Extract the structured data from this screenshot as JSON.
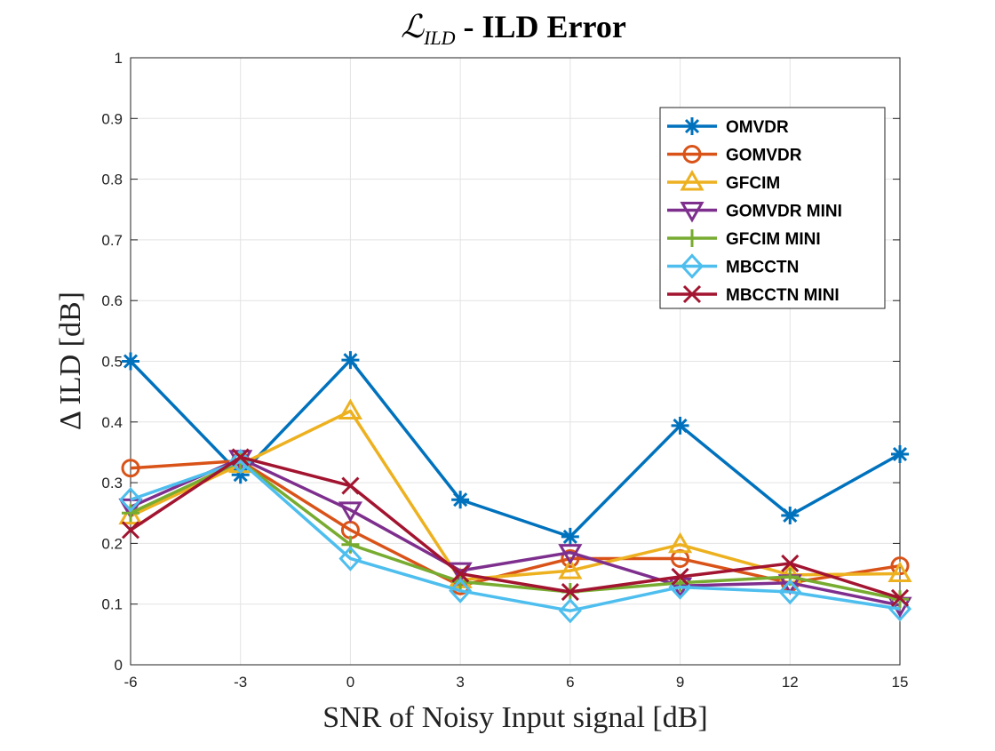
{
  "chart_data": {
    "type": "line",
    "title_script": "ℒ",
    "title_sub": "ILD",
    "title_rest": " - ILD Error",
    "xlabel": "SNR of Noisy Input signal [dB]",
    "ylabel": "Δ ILD [dB]",
    "x": [
      -6,
      -3,
      0,
      3,
      6,
      9,
      12,
      15
    ],
    "xlim": [
      -6,
      15
    ],
    "ylim": [
      0,
      1
    ],
    "xticks": [
      "-6",
      "-3",
      "0",
      "3",
      "6",
      "9",
      "12",
      "15"
    ],
    "yticks": [
      "0",
      "0.1",
      "0.2",
      "0.3",
      "0.4",
      "0.5",
      "0.6",
      "0.7",
      "0.8",
      "0.9",
      "1"
    ],
    "grid": true,
    "legend_position": "top-right",
    "series": [
      {
        "name": "OMVDR",
        "color": "#0072BD",
        "marker": "asterisk",
        "values": [
          0.5,
          0.313,
          0.502,
          0.272,
          0.211,
          0.394,
          0.246,
          0.347
        ]
      },
      {
        "name": "GOMVDR",
        "color": "#D95319",
        "marker": "circle",
        "values": [
          0.324,
          0.336,
          0.222,
          0.13,
          0.175,
          0.175,
          0.135,
          0.163
        ]
      },
      {
        "name": "GFCIM",
        "color": "#EDB120",
        "marker": "triangle-up",
        "values": [
          0.245,
          0.33,
          0.418,
          0.14,
          0.155,
          0.198,
          0.148,
          0.15
        ]
      },
      {
        "name": "GOMVDR MINI",
        "color": "#7E2F8E",
        "marker": "triangle-down",
        "values": [
          0.26,
          0.34,
          0.255,
          0.155,
          0.185,
          0.13,
          0.135,
          0.098
        ]
      },
      {
        "name": "GFCIM MINI",
        "color": "#77AC30",
        "marker": "plus",
        "values": [
          0.25,
          0.335,
          0.198,
          0.137,
          0.12,
          0.135,
          0.145,
          0.108
        ]
      },
      {
        "name": "MBCCTN",
        "color": "#4DBEEE",
        "marker": "diamond",
        "values": [
          0.272,
          0.335,
          0.175,
          0.122,
          0.089,
          0.128,
          0.12,
          0.092
        ]
      },
      {
        "name": "MBCCTN MINI",
        "color": "#A2142F",
        "marker": "x",
        "values": [
          0.222,
          0.342,
          0.295,
          0.15,
          0.12,
          0.145,
          0.167,
          0.11
        ]
      }
    ]
  }
}
